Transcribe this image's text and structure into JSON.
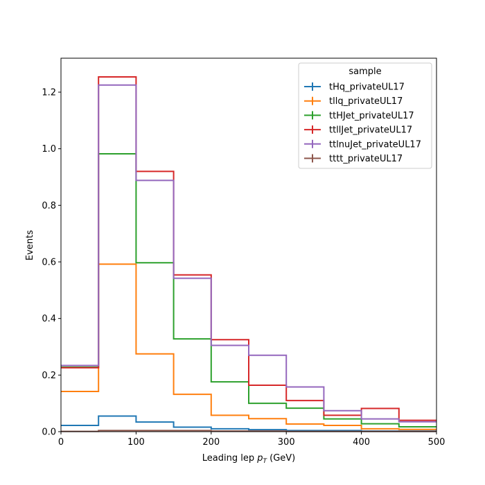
{
  "chart_data": {
    "type": "line",
    "subtype": "step-histogram",
    "xlabel_prefix": "Leading lep ",
    "xlabel_var": "p",
    "xlabel_sub": "T",
    "xlabel_suffix": " (GeV)",
    "ylabel": "Events",
    "xlim": [
      0,
      500
    ],
    "ylim": [
      0,
      1.32
    ],
    "bin_edges": [
      0,
      50,
      100,
      150,
      200,
      250,
      300,
      350,
      400,
      450,
      500
    ],
    "xticks": [
      "0",
      "100",
      "200",
      "300",
      "400",
      "500"
    ],
    "yticks": [
      "0.0",
      "0.2",
      "0.4",
      "0.6",
      "0.8",
      "1.0",
      "1.2"
    ],
    "grid": false,
    "legend": {
      "title": "sample",
      "placement": "upper-right"
    },
    "series": [
      {
        "name": "tHq_privateUL17",
        "color": "#1f77b4",
        "values": [
          0.022,
          0.055,
          0.034,
          0.016,
          0.01,
          0.007,
          0.004,
          0.004,
          0.002,
          0.002
        ]
      },
      {
        "name": "tllq_privateUL17",
        "color": "#ff7f0e",
        "values": [
          0.142,
          0.592,
          0.275,
          0.132,
          0.058,
          0.046,
          0.027,
          0.022,
          0.01,
          0.008
        ]
      },
      {
        "name": "ttHJet_privateUL17",
        "color": "#2ca02c",
        "values": [
          0.228,
          0.982,
          0.597,
          0.328,
          0.176,
          0.1,
          0.083,
          0.045,
          0.028,
          0.017
        ]
      },
      {
        "name": "ttllJet_privateUL17",
        "color": "#d62728",
        "values": [
          0.226,
          1.254,
          0.92,
          0.554,
          0.325,
          0.164,
          0.11,
          0.058,
          0.082,
          0.04
        ]
      },
      {
        "name": "ttlnuJet_privateUL17",
        "color": "#9467bd",
        "values": [
          0.234,
          1.225,
          0.888,
          0.542,
          0.305,
          0.27,
          0.158,
          0.074,
          0.045,
          0.035
        ]
      },
      {
        "name": "tttt_privateUL17",
        "color": "#8c564b",
        "values": [
          0.001,
          0.004,
          0.004,
          0.004,
          0.002,
          0.002,
          0.001,
          0.001,
          0.001,
          0.001
        ]
      }
    ]
  }
}
